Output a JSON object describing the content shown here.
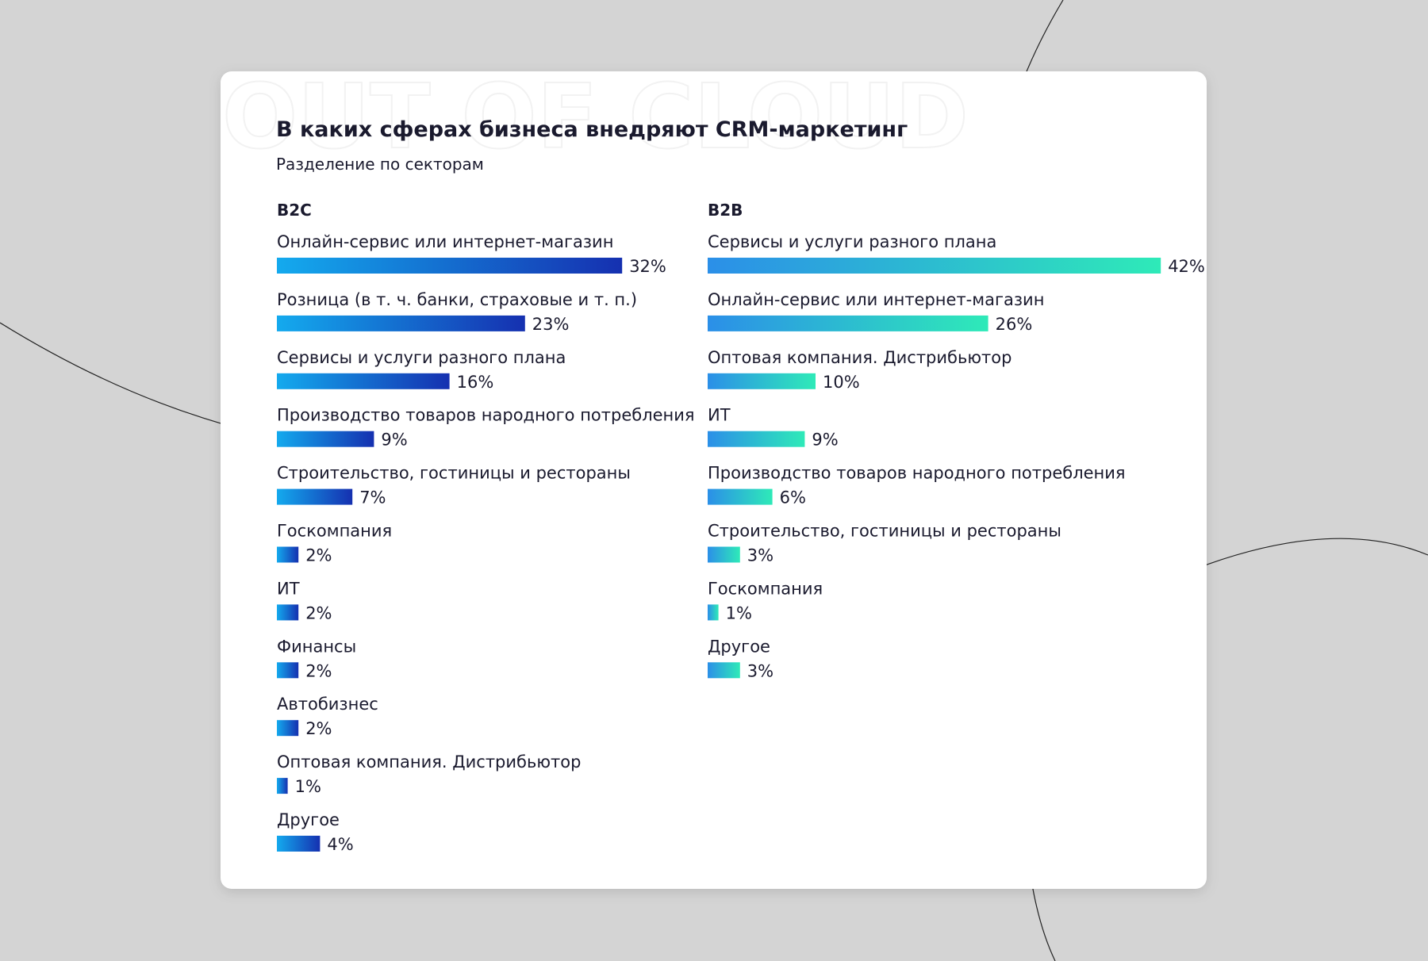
{
  "watermark": "OUT OF CLOUD",
  "title": "В каких сферах бизнеса внедряют CRM-маркетинг",
  "subtitle": "Разделение по секторам",
  "chart_data": [
    {
      "type": "bar",
      "orientation": "horizontal",
      "title": "B2C",
      "categories": [
        "Онлайн-сервис или интернет-магазин",
        "Розница (в т. ч. банки, страховые и т. п.)",
        "Сервисы и услуги разного плана",
        "Производство товаров народного потребления",
        "Строительство, гостиницы и рестораны",
        "Госкомпания",
        "ИТ",
        "Финансы",
        "Автобизнес",
        "Оптовая компания. Дистрибьютор",
        "Другое"
      ],
      "values": [
        32,
        23,
        16,
        9,
        7,
        2,
        2,
        2,
        2,
        1,
        4
      ],
      "value_labels": [
        "32%",
        "23%",
        "16%",
        "9%",
        "7%",
        "2%",
        "2%",
        "2%",
        "2%",
        "1%",
        "4%"
      ],
      "gradient": [
        "#14aaee",
        "#1530b0"
      ]
    },
    {
      "type": "bar",
      "orientation": "horizontal",
      "title": "B2B",
      "categories": [
        "Сервисы и услуги разного плана",
        "Онлайн-сервис или интернет-магазин",
        "Оптовая компания. Дистрибьютор",
        "ИТ",
        "Производство товаров народного потребления",
        "Строительство, гостиницы и рестораны",
        "Госкомпания",
        "Другое"
      ],
      "values": [
        42,
        26,
        10,
        9,
        6,
        3,
        1,
        3
      ],
      "value_labels": [
        "42%",
        "26%",
        "10%",
        "9%",
        "6%",
        "3%",
        "1%",
        "3%"
      ],
      "gradient": [
        "#2b8fe8",
        "#2eeab8"
      ]
    }
  ]
}
